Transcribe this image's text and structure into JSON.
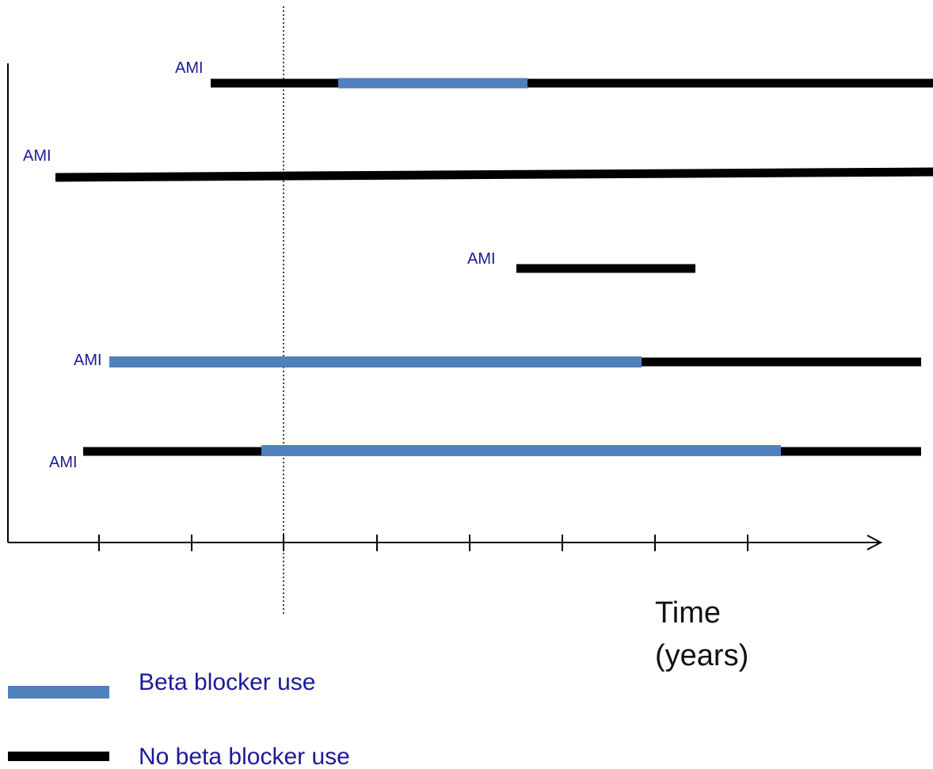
{
  "colors": {
    "beta_blocker": "#4f81bd",
    "no_beta_blocker": "#000000",
    "label_text": "#1a1a99",
    "axis": "#000000"
  },
  "patients": [
    {
      "event_label": "AMI"
    },
    {
      "event_label": "AMI"
    },
    {
      "event_label": "AMI"
    },
    {
      "event_label": "AMI"
    },
    {
      "event_label": "AMI"
    }
  ],
  "axis": {
    "label_line1": "Time",
    "label_line2": "(years)"
  },
  "legend": {
    "beta_label": "Beta blocker use",
    "no_beta_label": "No beta blocker use"
  }
}
